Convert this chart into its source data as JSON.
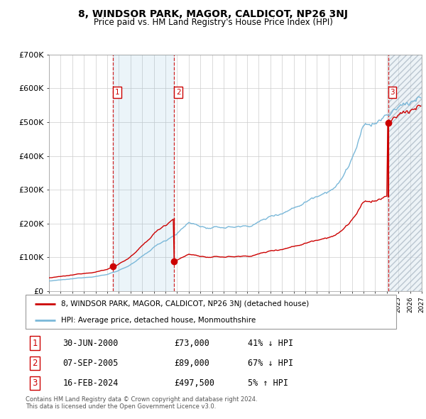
{
  "title": "8, WINDSOR PARK, MAGOR, CALDICOT, NP26 3NJ",
  "subtitle": "Price paid vs. HM Land Registry's House Price Index (HPI)",
  "legend_line1": "8, WINDSOR PARK, MAGOR, CALDICOT, NP26 3NJ (detached house)",
  "legend_line2": "HPI: Average price, detached house, Monmouthshire",
  "transactions": [
    {
      "num": 1,
      "date": "30-JUN-2000",
      "price": 73000,
      "pct": "41%",
      "dir": "↓",
      "year_x": 2000.5
    },
    {
      "num": 2,
      "date": "07-SEP-2005",
      "price": 89000,
      "pct": "67%",
      "dir": "↓",
      "year_x": 2005.75
    },
    {
      "num": 3,
      "date": "16-FEB-2024",
      "price": 497500,
      "pct": "5%",
      "dir": "↑",
      "year_x": 2024.12
    }
  ],
  "footnote": "Contains HM Land Registry data © Crown copyright and database right 2024.\nThis data is licensed under the Open Government Licence v3.0.",
  "hpi_color": "#7ab8d9",
  "price_color": "#cc0000",
  "background_color": "#ffffff",
  "plot_bg_color": "#ffffff",
  "grid_color": "#cccccc",
  "xmin": 1995,
  "xmax": 2027,
  "ymin": 0,
  "ymax": 700000,
  "yticks": [
    0,
    100000,
    200000,
    300000,
    400000,
    500000,
    600000,
    700000
  ],
  "ylabels": [
    "£0",
    "£100K",
    "£200K",
    "£300K",
    "£400K",
    "£500K",
    "£600K",
    "£700K"
  ]
}
